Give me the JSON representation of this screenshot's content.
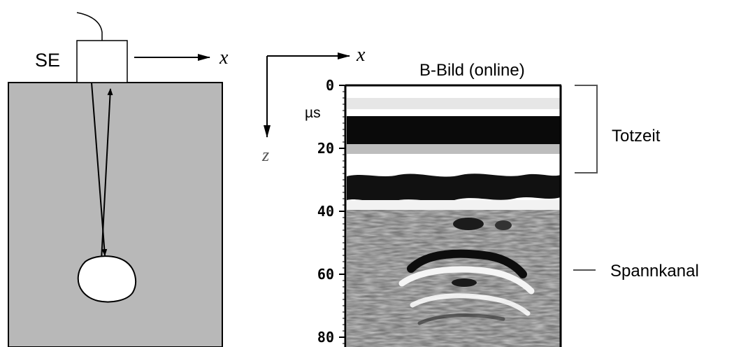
{
  "left_panel": {
    "transducer_label": "SE",
    "x_axis_label": "x"
  },
  "right_panel": {
    "x_axis_label": "x",
    "z_axis_label": "z",
    "title": "B-Bild (online)",
    "unit": "µs",
    "ticks": [
      {
        "value": 0,
        "label": "0"
      },
      {
        "value": 20,
        "label": "20"
      },
      {
        "value": 40,
        "label": "40"
      },
      {
        "value": 60,
        "label": "60"
      },
      {
        "value": 80,
        "label": "80"
      }
    ],
    "annotations": {
      "dead_time": "Totzeit",
      "duct": "Spannkanal"
    }
  },
  "colors": {
    "concrete": "#b8b8b8",
    "line": "#000000",
    "bracket": "#555555"
  }
}
